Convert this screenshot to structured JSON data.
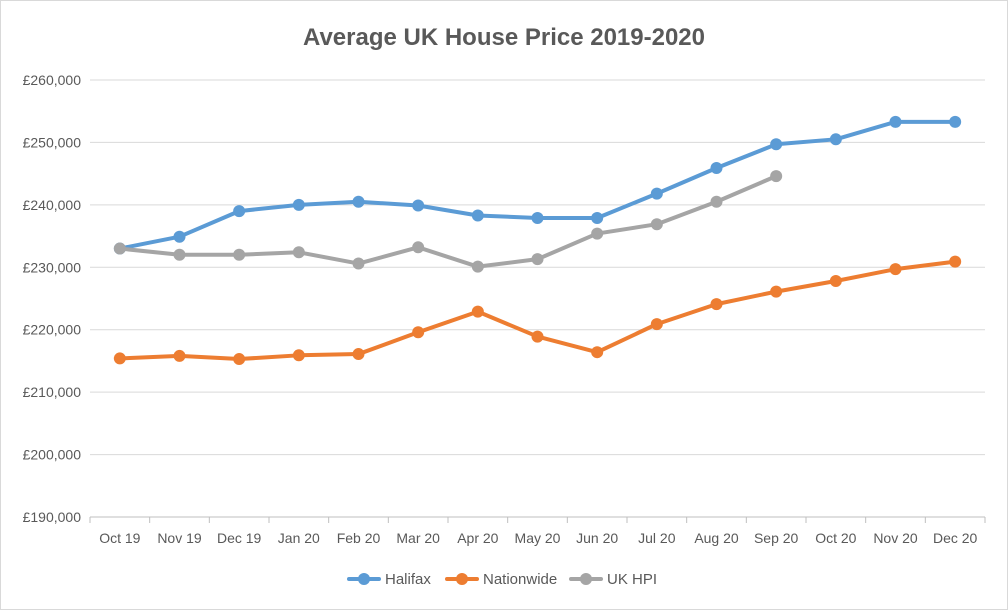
{
  "chart_data": {
    "type": "line",
    "title": "Average UK House Price 2019-2020",
    "xlabel": "",
    "ylabel": "",
    "categories": [
      "Oct 19",
      "Nov 19",
      "Dec 19",
      "Jan 20",
      "Feb 20",
      "Mar 20",
      "Apr 20",
      "May 20",
      "Jun 20",
      "Jul 20",
      "Aug 20",
      "Sep 20",
      "Oct 20",
      "Nov 20",
      "Dec 20"
    ],
    "ylim": [
      190000,
      260000
    ],
    "yticks": [
      190000,
      200000,
      210000,
      220000,
      230000,
      240000,
      250000,
      260000
    ],
    "ytick_labels": [
      "£190,000",
      "£200,000",
      "£210,000",
      "£220,000",
      "£230,000",
      "£240,000",
      "£250,000",
      "£260,000"
    ],
    "grid": true,
    "legend_position": "bottom",
    "series": [
      {
        "name": "Halifax",
        "color": "#5b9bd5",
        "values": [
          233000,
          234900,
          239000,
          240000,
          240500,
          239900,
          238300,
          237900,
          237900,
          241800,
          245900,
          249700,
          250500,
          253300,
          253300
        ]
      },
      {
        "name": "Nationwide",
        "color": "#ed7d31",
        "values": [
          215400,
          215800,
          215300,
          215900,
          216100,
          219600,
          222900,
          218900,
          216400,
          220900,
          224100,
          226100,
          227800,
          229700,
          230900
        ]
      },
      {
        "name": "UK HPI",
        "color": "#a5a5a5",
        "values": [
          233000,
          232000,
          232000,
          232400,
          230600,
          233200,
          230100,
          231300,
          235400,
          236900,
          240500,
          244600,
          null,
          null,
          null
        ]
      }
    ]
  }
}
